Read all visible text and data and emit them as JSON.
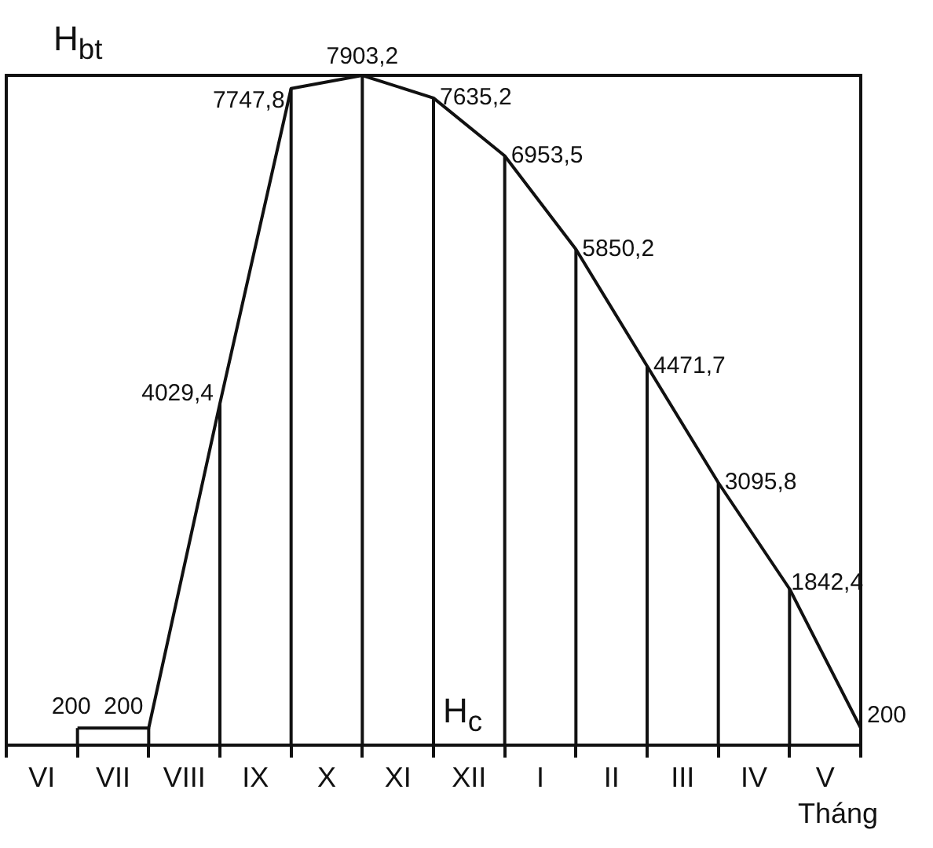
{
  "chart_data": {
    "type": "line",
    "ylabel": "H$_{bt}$",
    "xlabel": "Tháng",
    "annotations": [
      "H$_{c}$"
    ],
    "categories": [
      null,
      "VI",
      null,
      "VII",
      null,
      "VIII",
      null,
      "IX",
      null,
      "X",
      null,
      "XI",
      null,
      "XII",
      null,
      "I",
      null,
      "II",
      null,
      "III",
      null,
      "IV",
      null,
      "V",
      null
    ],
    "values": [
      null,
      null,
      200,
      null,
      200,
      null,
      4029.4,
      null,
      7747.8,
      null,
      7903.2,
      null,
      7635.2,
      null,
      6953.5,
      null,
      5850.2,
      null,
      4471.7,
      null,
      3095.8,
      null,
      1842.4,
      null,
      200
    ],
    "value_labels": [
      null,
      null,
      "200",
      null,
      "200",
      null,
      "4029,4",
      null,
      "7747,8",
      null,
      "7903,2",
      null,
      "7635,2",
      null,
      "6953,5",
      null,
      "5850,2",
      null,
      "4471,7",
      null,
      "3095,8",
      null,
      "1842,4",
      null,
      "200"
    ],
    "color": "#111111",
    "marker": "none",
    "line_style": "solid",
    "grid": "x",
    "legend": false,
    "tick_labels": "x",
    "ylim": [
      0,
      7903.2
    ]
  }
}
